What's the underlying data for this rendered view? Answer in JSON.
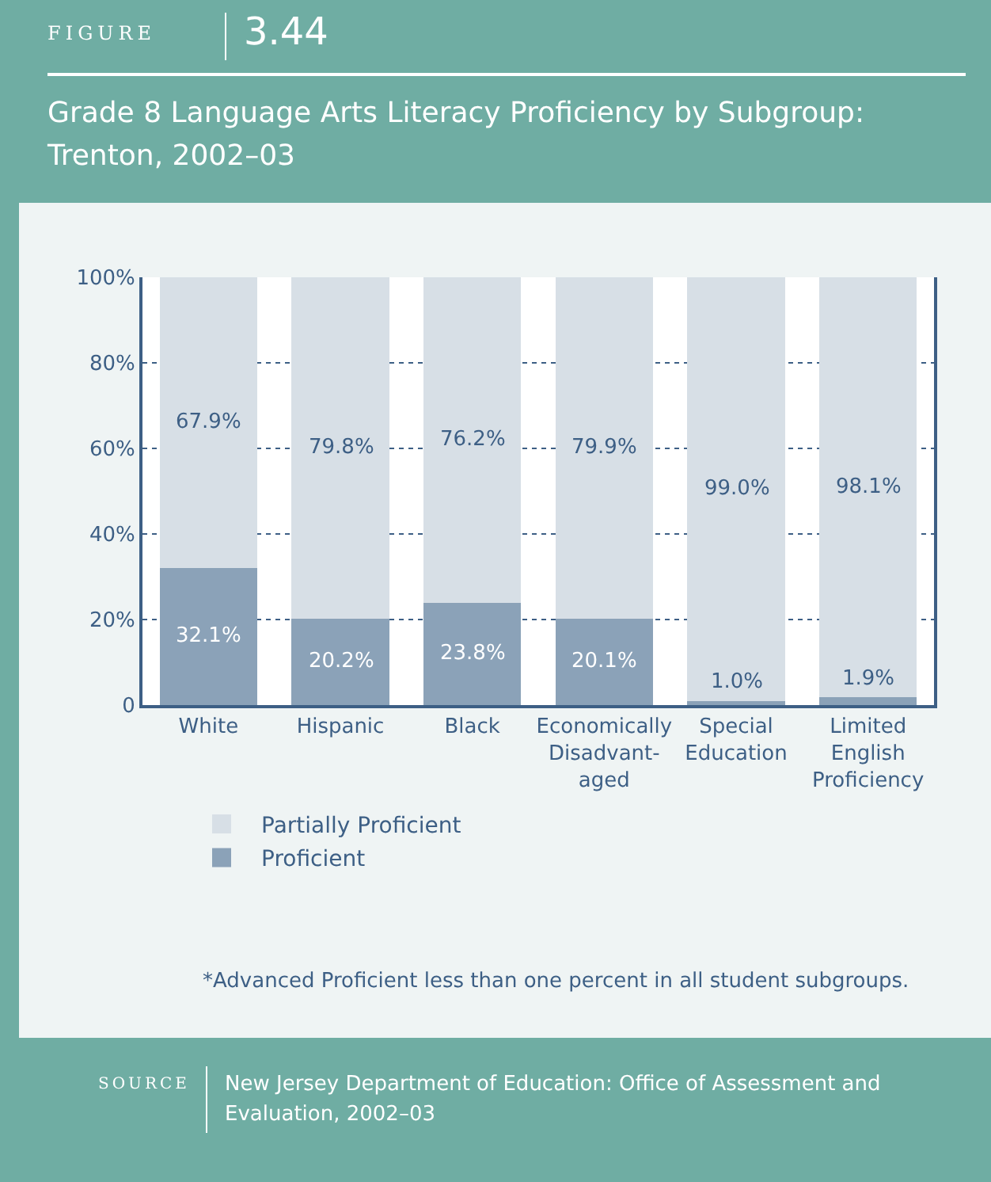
{
  "chart_data": {
    "type": "bar",
    "stacked": true,
    "title": "Grade 8 Language Arts Literacy Proficiency by Subgroup: Trenton, 2002–03",
    "annotations": [
      "FIGURE",
      "3.44",
      "*Advanced Proficient less than one percent in all student subgroups.",
      "SOURCE",
      "New Jersey Department of Education: Office of Assessment and Evaluation, 2002–03"
    ],
    "categories": [
      "White",
      "Hispanic",
      "Black",
      "Economically\nDisadvant-\naged",
      "Special\nEducation",
      "Limited\nEnglish\nProficiency"
    ],
    "series": [
      {
        "name": "Proficient",
        "color": "#8ba2b8",
        "values": [
          32.1,
          20.2,
          23.8,
          20.1,
          1.0,
          1.9
        ],
        "value_labels": [
          "32.1%",
          "20.2%",
          "23.8%",
          "20.1%",
          "1.0%",
          "1.9%"
        ]
      },
      {
        "name": "Partially Proficient",
        "color": "#d7dfe6",
        "values": [
          67.9,
          79.8,
          76.2,
          79.9,
          99.0,
          98.1
        ],
        "value_labels": [
          "67.9%",
          "79.8%",
          "76.2%",
          "79.9%",
          "99.0%",
          "98.1%"
        ]
      }
    ],
    "ylim": [
      0,
      100
    ],
    "yticks": [
      0,
      {
        "value": 20,
        "label": "20%"
      },
      {
        "value": 40,
        "label": "40%"
      },
      {
        "value": 60,
        "label": "60%"
      },
      {
        "value": 80,
        "label": "80%"
      },
      {
        "value": 100,
        "label": "100%"
      }
    ],
    "grid": "y",
    "line_style": "dotted",
    "legend": "bottom left"
  }
}
